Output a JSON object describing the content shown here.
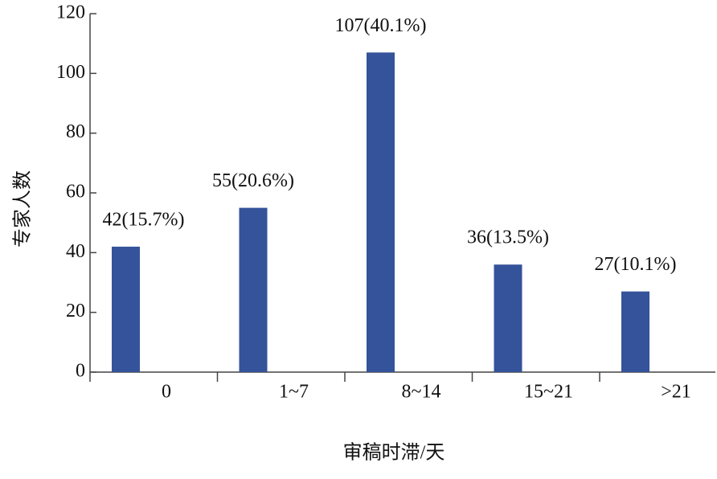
{
  "chart_data": {
    "type": "bar",
    "x_label": "审稿时滞/天",
    "y_label": "专家人数",
    "categories": [
      "0",
      "1~7",
      "8~14",
      "15~21",
      ">21"
    ],
    "values": [
      42,
      55,
      107,
      36,
      27
    ],
    "value_labels": [
      "42(15.7%)",
      "55(20.6%)",
      "107(40.1%)",
      "36(13.5%)",
      "27(10.1%)"
    ],
    "color": "#34539a",
    "ylim": [
      0,
      120
    ],
    "yticks": [
      0,
      20,
      40,
      60,
      80,
      100,
      120
    ],
    "grid": false
  }
}
